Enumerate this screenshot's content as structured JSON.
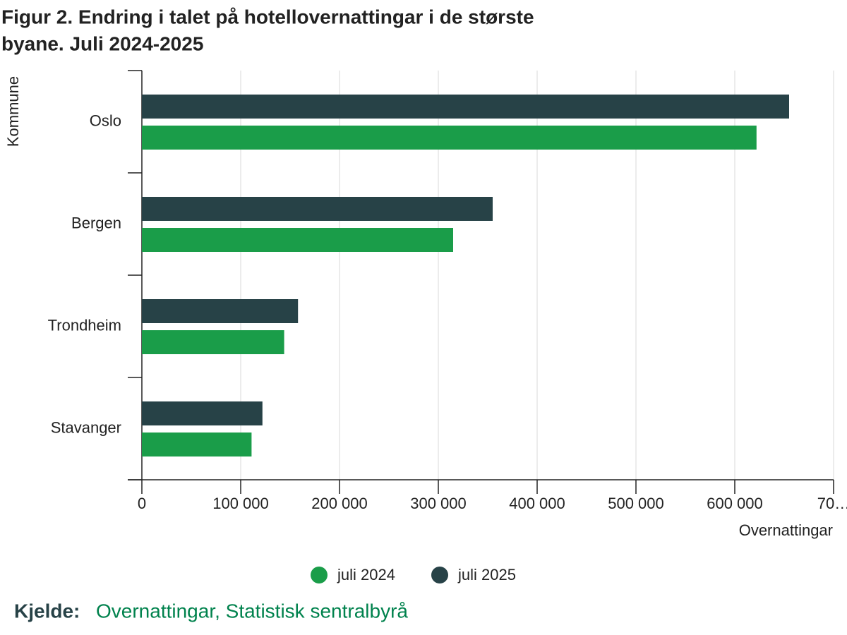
{
  "chart_data": {
    "type": "hbar",
    "title": "Figur 2. Endring i talet på hotellovernattingar i de største byane. Juli 2024-2025",
    "y_label": "Kommune",
    "x_label": "Overnattingar",
    "categories": [
      "Oslo",
      "Bergen",
      "Trondheim",
      "Stavanger"
    ],
    "series": [
      {
        "name": "juli 2024",
        "color": "#1a9d49",
        "values": [
          622000,
          315000,
          144000,
          111000
        ]
      },
      {
        "name": "juli 2025",
        "color": "#274247",
        "values": [
          655000,
          355000,
          158000,
          122000
        ]
      }
    ],
    "xlim": [
      0,
      700000
    ],
    "xticks": [
      0,
      {
        "value": 100000,
        "label": "100 000"
      },
      {
        "value": 200000,
        "label": "200 000"
      },
      {
        "value": 300000,
        "label": "300 000"
      },
      {
        "value": 400000,
        "label": "400 000"
      },
      {
        "value": 500000,
        "label": "500 000"
      },
      {
        "value": 600000,
        "label": "600 000"
      },
      {
        "value": 700000,
        "label": "70…"
      }
    ],
    "grid": true,
    "source_label": "Kjelde:",
    "source_text": "Overnattingar, Statistisk sentralbyrå"
  }
}
